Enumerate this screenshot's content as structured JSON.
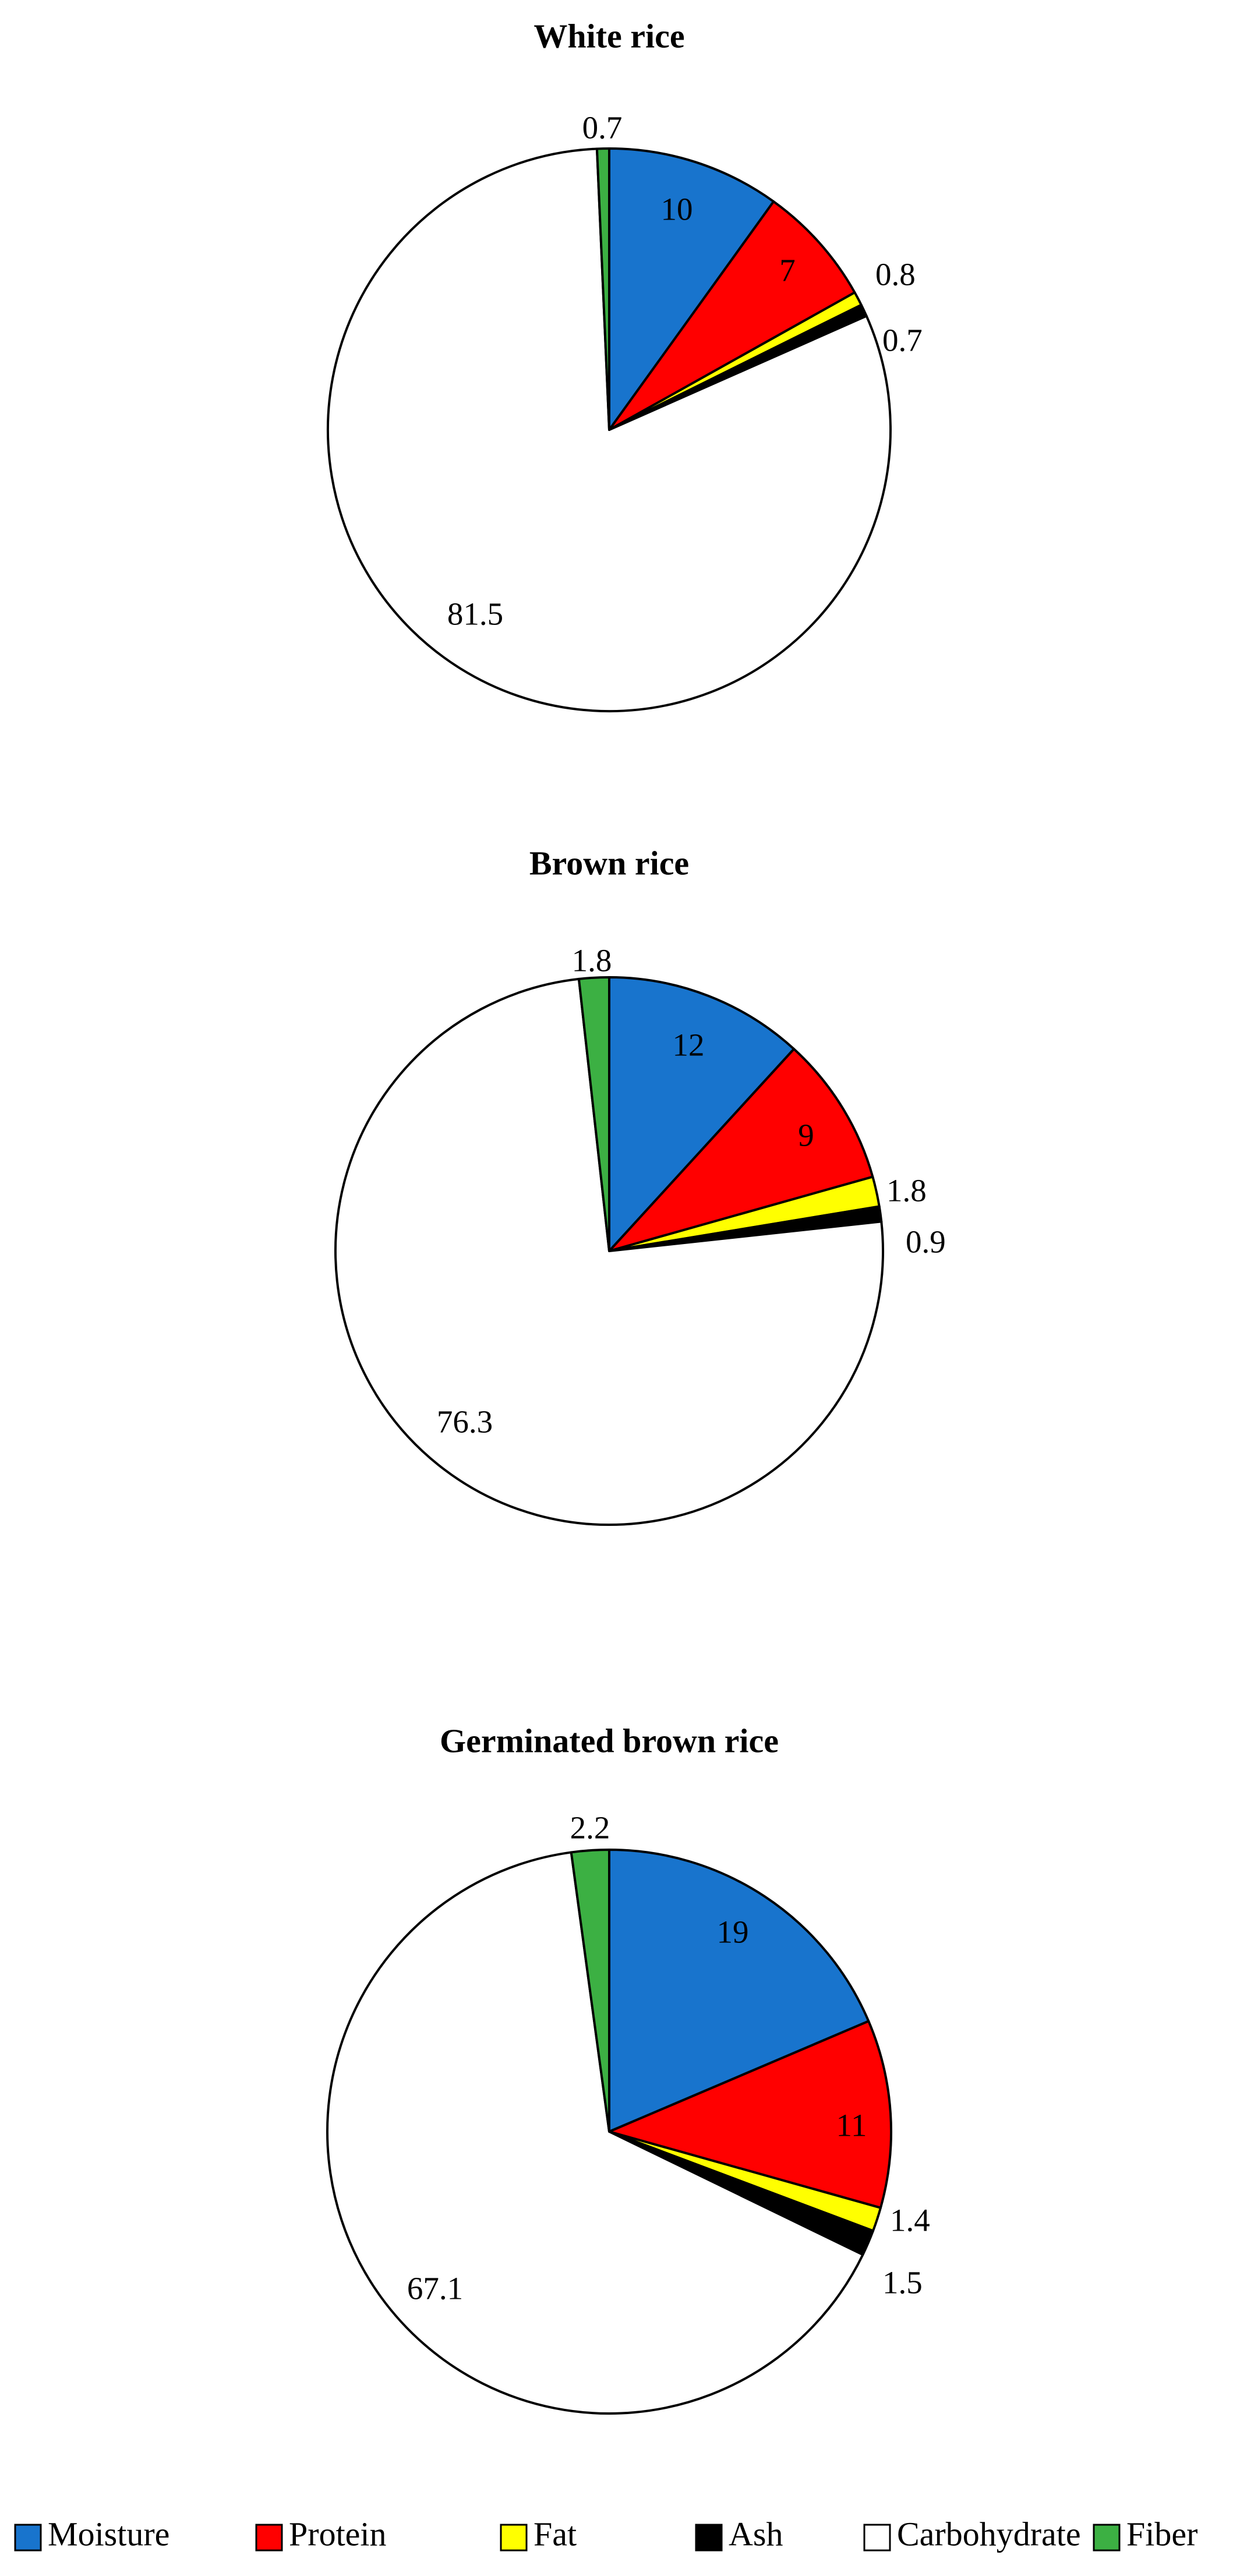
{
  "chart_data": [
    {
      "type": "pie",
      "title": "White rice",
      "categories": [
        "Moisture",
        "Protein",
        "Fat",
        "Ash",
        "Carbohydrate",
        "Fiber"
      ],
      "values": [
        10,
        7,
        0.8,
        0.7,
        81.5,
        0.7
      ],
      "labels": [
        "10",
        "7",
        "0.8",
        "0.7",
        "81.5",
        "0.7"
      ]
    },
    {
      "type": "pie",
      "title": "Brown rice",
      "categories": [
        "Moisture",
        "Protein",
        "Fat",
        "Ash",
        "Carbohydrate",
        "Fiber"
      ],
      "values": [
        12,
        9,
        1.8,
        0.9,
        76.3,
        1.8
      ],
      "labels": [
        "12",
        "9",
        "1.8",
        "0.9",
        "76.3",
        "1.8"
      ]
    },
    {
      "type": "pie",
      "title": "Germinated brown rice",
      "categories": [
        "Moisture",
        "Protein",
        "Fat",
        "Ash",
        "Carbohydrate",
        "Fiber"
      ],
      "values": [
        19,
        11,
        1.4,
        1.5,
        67.1,
        2.2
      ],
      "labels": [
        "19",
        "11",
        "1.4",
        "1.5",
        "67.1",
        "2.2"
      ]
    }
  ],
  "legend": {
    "placement": "bottom",
    "items": [
      {
        "label": "Moisture",
        "color": "#1874cd"
      },
      {
        "label": "Protein",
        "color": "#ff0000"
      },
      {
        "label": "Fat",
        "color": "#ffff00"
      },
      {
        "label": "Ash",
        "color": "#000000"
      },
      {
        "label": "Carbohydrate",
        "color": "#ffffff"
      },
      {
        "label": "Fiber",
        "color": "#3cb043"
      }
    ]
  }
}
